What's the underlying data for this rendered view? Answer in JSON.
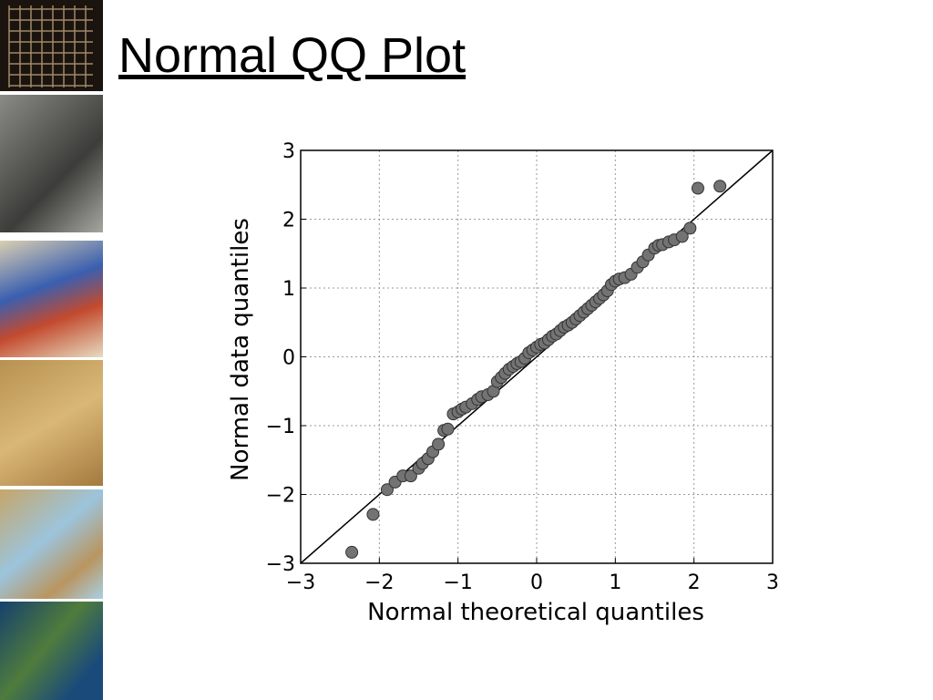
{
  "title": "Normal QQ Plot",
  "chart_data": {
    "type": "scatter",
    "x_label": "Normal theoretical quantiles",
    "y_label": "Normal data quantiles",
    "x": [
      -2.35,
      -2.08,
      -1.9,
      -1.8,
      -1.7,
      -1.6,
      -1.5,
      -1.45,
      -1.38,
      -1.32,
      -1.25,
      -1.18,
      -1.13,
      -1.06,
      -1.0,
      -0.95,
      -0.9,
      -0.82,
      -0.75,
      -0.7,
      -0.62,
      -0.55,
      -0.5,
      -0.45,
      -0.4,
      -0.35,
      -0.3,
      -0.25,
      -0.2,
      -0.15,
      -0.1,
      -0.05,
      0.0,
      0.05,
      0.1,
      0.15,
      0.2,
      0.25,
      0.3,
      0.35,
      0.4,
      0.45,
      0.5,
      0.55,
      0.6,
      0.65,
      0.7,
      0.75,
      0.8,
      0.85,
      0.9,
      0.95,
      1.0,
      1.05,
      1.12,
      1.2,
      1.28,
      1.35,
      1.42,
      1.5,
      1.55,
      1.6,
      1.68,
      1.75,
      1.85,
      1.95,
      2.05,
      2.33
    ],
    "series": [
      {
        "color": "#737373",
        "values": [
          -2.84,
          -2.29,
          -1.93,
          -1.82,
          -1.73,
          -1.73,
          -1.62,
          -1.55,
          -1.48,
          -1.38,
          -1.27,
          -1.07,
          -1.05,
          -0.83,
          -0.8,
          -0.76,
          -0.73,
          -0.68,
          -0.62,
          -0.58,
          -0.55,
          -0.5,
          -0.36,
          -0.3,
          -0.24,
          -0.18,
          -0.14,
          -0.1,
          -0.07,
          -0.02,
          0.06,
          0.1,
          0.14,
          0.18,
          0.2,
          0.25,
          0.3,
          0.33,
          0.38,
          0.43,
          0.46,
          0.5,
          0.55,
          0.6,
          0.65,
          0.7,
          0.75,
          0.8,
          0.85,
          0.9,
          0.96,
          1.05,
          1.1,
          1.13,
          1.15,
          1.2,
          1.3,
          1.38,
          1.48,
          1.58,
          1.62,
          1.63,
          1.67,
          1.7,
          1.75,
          1.87,
          2.45,
          2.48
        ]
      }
    ],
    "xlim": [
      -3,
      3
    ],
    "ylim": [
      -3,
      3
    ],
    "xticks": [
      {
        "value": -3,
        "label": "−3"
      },
      {
        "value": -2,
        "label": "−2"
      },
      {
        "value": -1,
        "label": "−1"
      },
      0,
      1,
      2,
      3
    ],
    "yticks": [
      {
        "value": -3,
        "label": "−3"
      },
      {
        "value": -2,
        "label": "−2"
      },
      {
        "value": -1,
        "label": "−1"
      },
      0,
      1,
      2,
      3
    ],
    "grid": true
  }
}
